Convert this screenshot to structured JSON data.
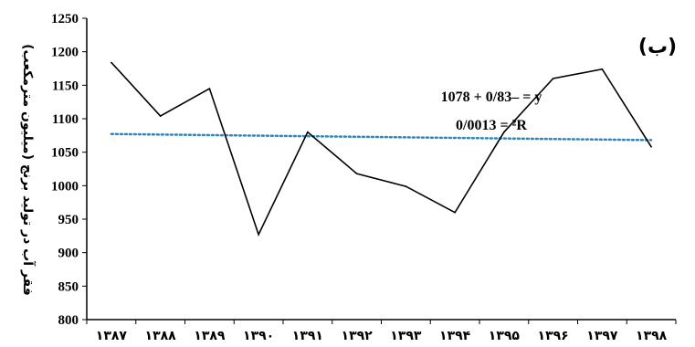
{
  "chart_data": {
    "type": "line",
    "title": "",
    "panel_label": "(ب)",
    "ylabel": "فقر آب در تولید برنج (میلیون مترمکعب)",
    "xlabel": "",
    "categories": [
      "۱۳۸۷",
      "۱۳۸۸",
      "۱۳۸۹",
      "۱۳۹۰",
      "۱۳۹۱",
      "۱۳۹۲",
      "۱۳۹۳",
      "۱۳۹۴",
      "۱۳۹۵",
      "۱۳۹۶",
      "۱۳۹۷",
      "۱۳۹۸"
    ],
    "series": [
      {
        "values": [
          1184,
          1104,
          1145,
          927,
          1080,
          1018,
          999,
          960,
          1080,
          1160,
          1174,
          1058
        ],
        "color": "#000000"
      }
    ],
    "trendline": {
      "slope": -0.83,
      "intercept": 1078,
      "color": "#2e86c1",
      "style": "dotted"
    },
    "equation_line1": "1078 + 0/83– = y",
    "equation_line2": "0/0013 = ²R",
    "ylim": [
      800,
      1250
    ],
    "yticks": [
      "800",
      "850",
      "900",
      "950",
      "1000",
      "1050",
      "1100",
      "1150",
      "1200",
      "1250"
    ],
    "grid": false,
    "legend": "none"
  }
}
